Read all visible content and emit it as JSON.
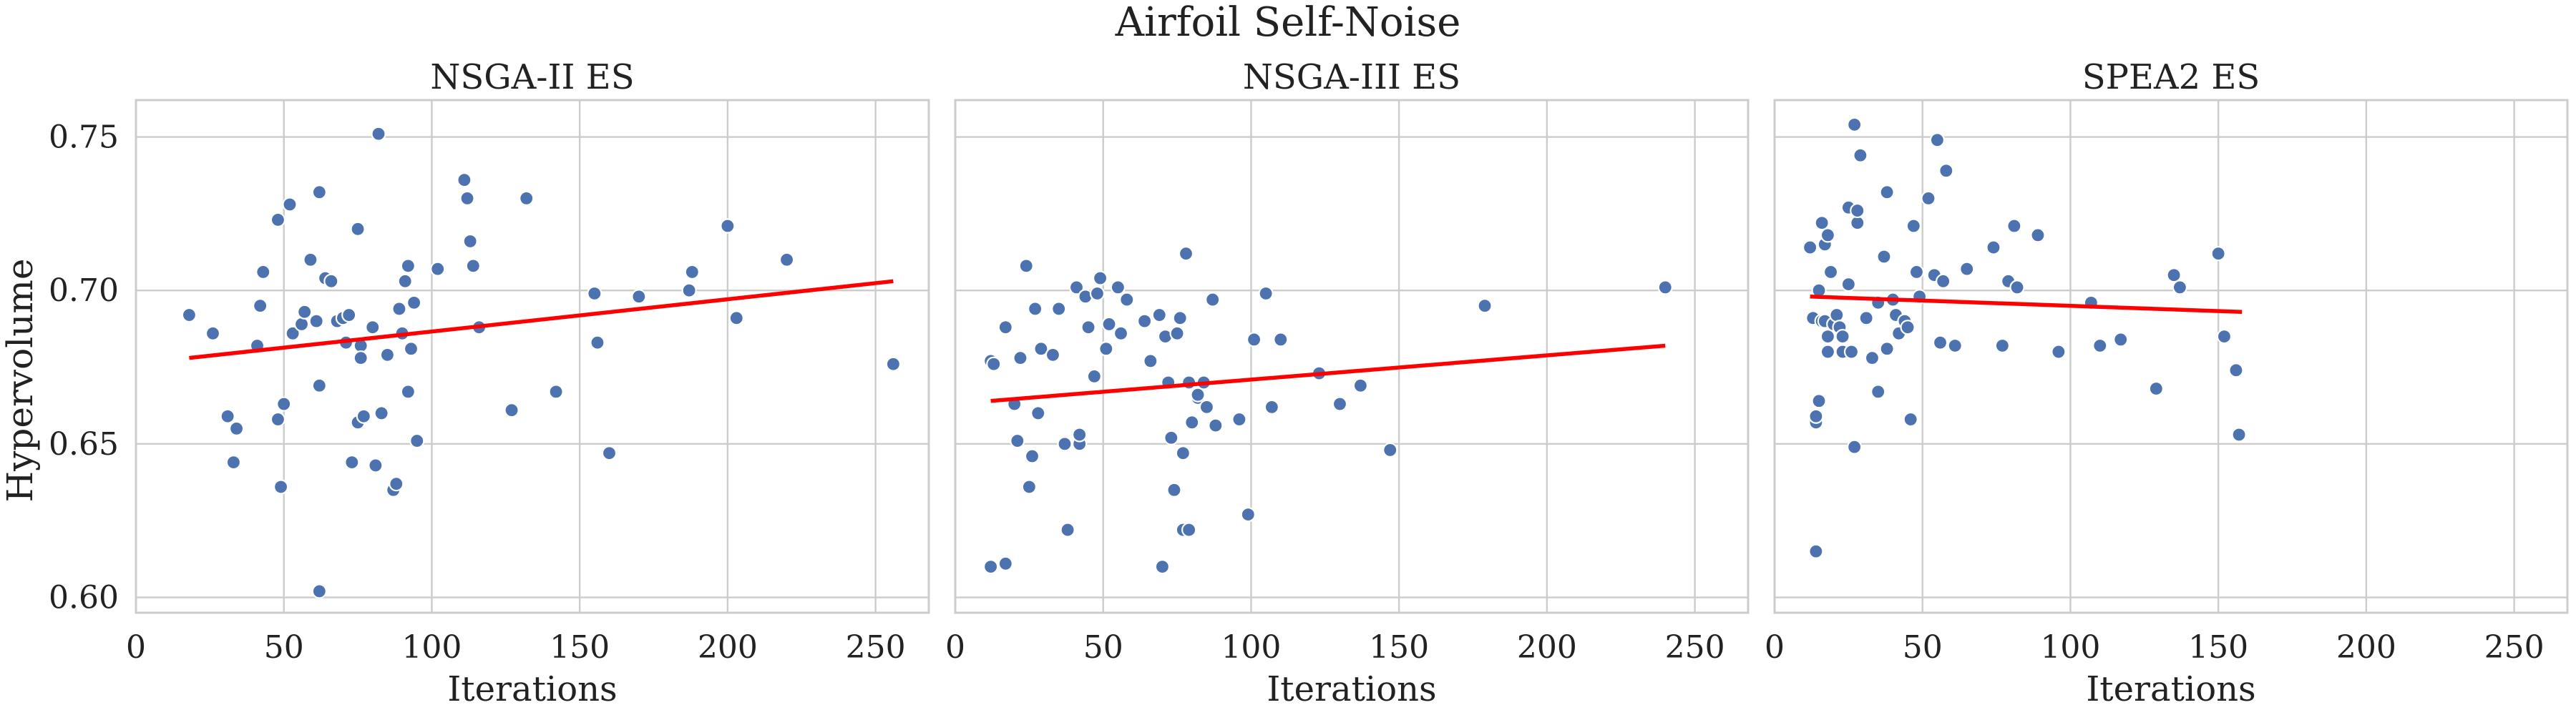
{
  "chart_data": {
    "type": "scatter",
    "title": "Airfoil Self-Noise",
    "ylabel": "Hypervolume",
    "ylim": [
      0.595,
      0.762
    ],
    "yticks": [
      "0.60",
      "0.65",
      "0.70",
      "0.75"
    ],
    "xlim": [
      0,
      268
    ],
    "xticks": [
      "0",
      "50",
      "100",
      "150",
      "200",
      "250"
    ],
    "grid": true,
    "point_color": "#4c72b0",
    "fit_color": "#ff0000",
    "panels": [
      {
        "title": "NSGA-II ES",
        "xlabel": "Iterations",
        "fit": {
          "x": [
            18,
            256
          ],
          "y": [
            0.678,
            0.703
          ]
        },
        "points": [
          [
            18,
            0.692
          ],
          [
            26,
            0.686
          ],
          [
            31,
            0.659
          ],
          [
            33,
            0.644
          ],
          [
            34,
            0.655
          ],
          [
            41,
            0.682
          ],
          [
            42,
            0.695
          ],
          [
            43,
            0.706
          ],
          [
            48,
            0.658
          ],
          [
            48,
            0.723
          ],
          [
            49,
            0.636
          ],
          [
            50,
            0.663
          ],
          [
            52,
            0.728
          ],
          [
            53,
            0.686
          ],
          [
            56,
            0.689
          ],
          [
            57,
            0.693
          ],
          [
            59,
            0.71
          ],
          [
            61,
            0.69
          ],
          [
            62,
            0.602
          ],
          [
            62,
            0.732
          ],
          [
            62,
            0.669
          ],
          [
            64,
            0.704
          ],
          [
            66,
            0.703
          ],
          [
            68,
            0.69
          ],
          [
            70,
            0.691
          ],
          [
            71,
            0.683
          ],
          [
            72,
            0.692
          ],
          [
            73,
            0.644
          ],
          [
            75,
            0.72
          ],
          [
            75,
            0.657
          ],
          [
            76,
            0.682
          ],
          [
            76,
            0.678
          ],
          [
            77,
            0.659
          ],
          [
            80,
            0.688
          ],
          [
            81,
            0.643
          ],
          [
            82,
            0.751
          ],
          [
            83,
            0.66
          ],
          [
            85,
            0.679
          ],
          [
            87,
            0.635
          ],
          [
            88,
            0.637
          ],
          [
            89,
            0.694
          ],
          [
            90,
            0.686
          ],
          [
            91,
            0.703
          ],
          [
            92,
            0.667
          ],
          [
            92,
            0.708
          ],
          [
            93,
            0.681
          ],
          [
            94,
            0.696
          ],
          [
            95,
            0.651
          ],
          [
            102,
            0.707
          ],
          [
            111,
            0.736
          ],
          [
            112,
            0.73
          ],
          [
            113,
            0.716
          ],
          [
            114,
            0.708
          ],
          [
            116,
            0.688
          ],
          [
            127,
            0.661
          ],
          [
            132,
            0.73
          ],
          [
            142,
            0.667
          ],
          [
            155,
            0.699
          ],
          [
            156,
            0.683
          ],
          [
            160,
            0.647
          ],
          [
            170,
            0.698
          ],
          [
            187,
            0.7
          ],
          [
            188,
            0.706
          ],
          [
            200,
            0.721
          ],
          [
            203,
            0.691
          ],
          [
            220,
            0.71
          ],
          [
            256,
            0.676
          ]
        ]
      },
      {
        "title": "NSGA-III ES",
        "xlabel": "Iterations",
        "fit": {
          "x": [
            12,
            240
          ],
          "y": [
            0.664
          ],
          "y2": 0.682
        },
        "points": [
          [
            12,
            0.61
          ],
          [
            12,
            0.677
          ],
          [
            13,
            0.676
          ],
          [
            17,
            0.688
          ],
          [
            17,
            0.611
          ],
          [
            20,
            0.663
          ],
          [
            21,
            0.651
          ],
          [
            22,
            0.678
          ],
          [
            24,
            0.708
          ],
          [
            25,
            0.636
          ],
          [
            26,
            0.646
          ],
          [
            27,
            0.694
          ],
          [
            28,
            0.66
          ],
          [
            29,
            0.681
          ],
          [
            33,
            0.679
          ],
          [
            35,
            0.694
          ],
          [
            37,
            0.65
          ],
          [
            38,
            0.622
          ],
          [
            41,
            0.701
          ],
          [
            42,
            0.65
          ],
          [
            42,
            0.653
          ],
          [
            44,
            0.698
          ],
          [
            45,
            0.688
          ],
          [
            47,
            0.672
          ],
          [
            48,
            0.699
          ],
          [
            49,
            0.704
          ],
          [
            51,
            0.681
          ],
          [
            52,
            0.689
          ],
          [
            55,
            0.701
          ],
          [
            56,
            0.686
          ],
          [
            58,
            0.697
          ],
          [
            64,
            0.69
          ],
          [
            66,
            0.677
          ],
          [
            69,
            0.692
          ],
          [
            70,
            0.61
          ],
          [
            71,
            0.685
          ],
          [
            72,
            0.67
          ],
          [
            73,
            0.652
          ],
          [
            74,
            0.635
          ],
          [
            75,
            0.686
          ],
          [
            76,
            0.691
          ],
          [
            77,
            0.647
          ],
          [
            77,
            0.622
          ],
          [
            78,
            0.712
          ],
          [
            79,
            0.622
          ],
          [
            79,
            0.67
          ],
          [
            80,
            0.657
          ],
          [
            82,
            0.665
          ],
          [
            82,
            0.666
          ],
          [
            84,
            0.67
          ],
          [
            85,
            0.662
          ],
          [
            87,
            0.697
          ],
          [
            88,
            0.656
          ],
          [
            96,
            0.658
          ],
          [
            99,
            0.627
          ],
          [
            101,
            0.684
          ],
          [
            105,
            0.699
          ],
          [
            107,
            0.662
          ],
          [
            110,
            0.684
          ],
          [
            123,
            0.673
          ],
          [
            130,
            0.663
          ],
          [
            137,
            0.669
          ],
          [
            147,
            0.648
          ],
          [
            179,
            0.695
          ],
          [
            240,
            0.701
          ]
        ]
      },
      {
        "title": "SPEA2 ES",
        "xlabel": "Iterations",
        "fit": {
          "x": [
            12,
            158
          ],
          "y": [
            0.698
          ],
          "y2": 0.693
        },
        "points": [
          [
            12,
            0.714
          ],
          [
            13,
            0.691
          ],
          [
            14,
            0.615
          ],
          [
            14,
            0.657
          ],
          [
            14,
            0.659
          ],
          [
            15,
            0.7
          ],
          [
            15,
            0.664
          ],
          [
            16,
            0.69
          ],
          [
            16,
            0.722
          ],
          [
            17,
            0.69
          ],
          [
            17,
            0.715
          ],
          [
            18,
            0.685
          ],
          [
            18,
            0.68
          ],
          [
            18,
            0.718
          ],
          [
            19,
            0.706
          ],
          [
            20,
            0.689
          ],
          [
            21,
            0.692
          ],
          [
            22,
            0.688
          ],
          [
            23,
            0.685
          ],
          [
            23,
            0.68
          ],
          [
            25,
            0.727
          ],
          [
            25,
            0.702
          ],
          [
            26,
            0.68
          ],
          [
            27,
            0.754
          ],
          [
            27,
            0.649
          ],
          [
            28,
            0.722
          ],
          [
            28,
            0.726
          ],
          [
            29,
            0.744
          ],
          [
            31,
            0.691
          ],
          [
            33,
            0.678
          ],
          [
            35,
            0.667
          ],
          [
            35,
            0.696
          ],
          [
            37,
            0.711
          ],
          [
            38,
            0.681
          ],
          [
            38,
            0.732
          ],
          [
            40,
            0.697
          ],
          [
            41,
            0.692
          ],
          [
            42,
            0.686
          ],
          [
            44,
            0.69
          ],
          [
            45,
            0.688
          ],
          [
            46,
            0.658
          ],
          [
            47,
            0.721
          ],
          [
            48,
            0.706
          ],
          [
            49,
            0.698
          ],
          [
            52,
            0.73
          ],
          [
            54,
            0.705
          ],
          [
            55,
            0.749
          ],
          [
            56,
            0.683
          ],
          [
            57,
            0.703
          ],
          [
            58,
            0.739
          ],
          [
            61,
            0.682
          ],
          [
            65,
            0.707
          ],
          [
            74,
            0.714
          ],
          [
            77,
            0.682
          ],
          [
            79,
            0.703
          ],
          [
            81,
            0.721
          ],
          [
            82,
            0.701
          ],
          [
            89,
            0.718
          ],
          [
            96,
            0.68
          ],
          [
            107,
            0.696
          ],
          [
            110,
            0.682
          ],
          [
            117,
            0.684
          ],
          [
            129,
            0.668
          ],
          [
            135,
            0.705
          ],
          [
            137,
            0.701
          ],
          [
            150,
            0.712
          ],
          [
            152,
            0.685
          ],
          [
            156,
            0.674
          ],
          [
            157,
            0.653
          ]
        ]
      }
    ]
  }
}
